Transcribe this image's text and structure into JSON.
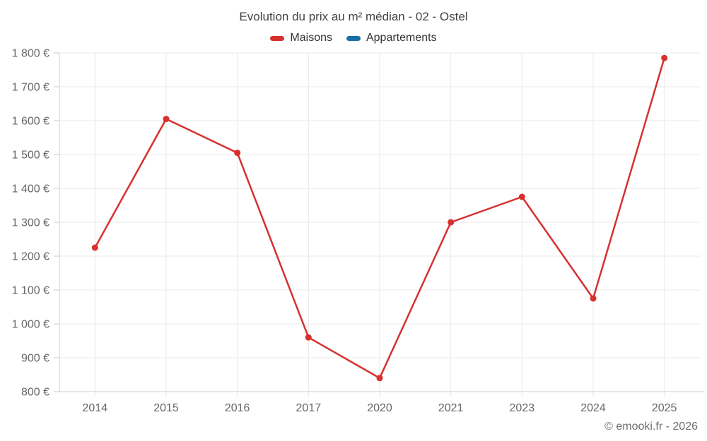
{
  "header": {
    "title": "Evolution du prix au m² médian - 02 - Ostel"
  },
  "legend": {
    "items": [
      {
        "label": "Maisons",
        "color": "#d7302f"
      },
      {
        "label": "Appartements",
        "color": "#1b6fa8"
      }
    ]
  },
  "footer": {
    "credit": "© emooki.fr - 2026"
  },
  "chart_data": {
    "type": "line",
    "title": "Evolution du prix au m² médian - 02 - Ostel",
    "categories": [
      "2014",
      "2015",
      "2016",
      "2017",
      "2020",
      "2021",
      "2023",
      "2024",
      "2025"
    ],
    "series": [
      {
        "name": "Maisons",
        "color": "#d7302f",
        "values": [
          1225,
          1605,
          1505,
          960,
          840,
          1300,
          1375,
          1075,
          1785
        ]
      },
      {
        "name": "Appartements",
        "color": "#1b6fa8",
        "values": []
      }
    ],
    "xlabel": "",
    "ylabel": "",
    "ylim": [
      800,
      1800
    ],
    "ytick_step": 100,
    "ytick_labels": [
      "800 €",
      "900 €",
      "1 000 €",
      "1 100 €",
      "1 200 €",
      "1 300 €",
      "1 400 €",
      "1 500 €",
      "1 600 €",
      "1 700 €",
      "1 800 €"
    ],
    "grid": true,
    "legend_position": "top",
    "colors": {
      "gridline": "#e9e9e9",
      "axis_line": "#cccccc",
      "tick": "#cccccc",
      "axis_label_text": "#666666"
    }
  }
}
